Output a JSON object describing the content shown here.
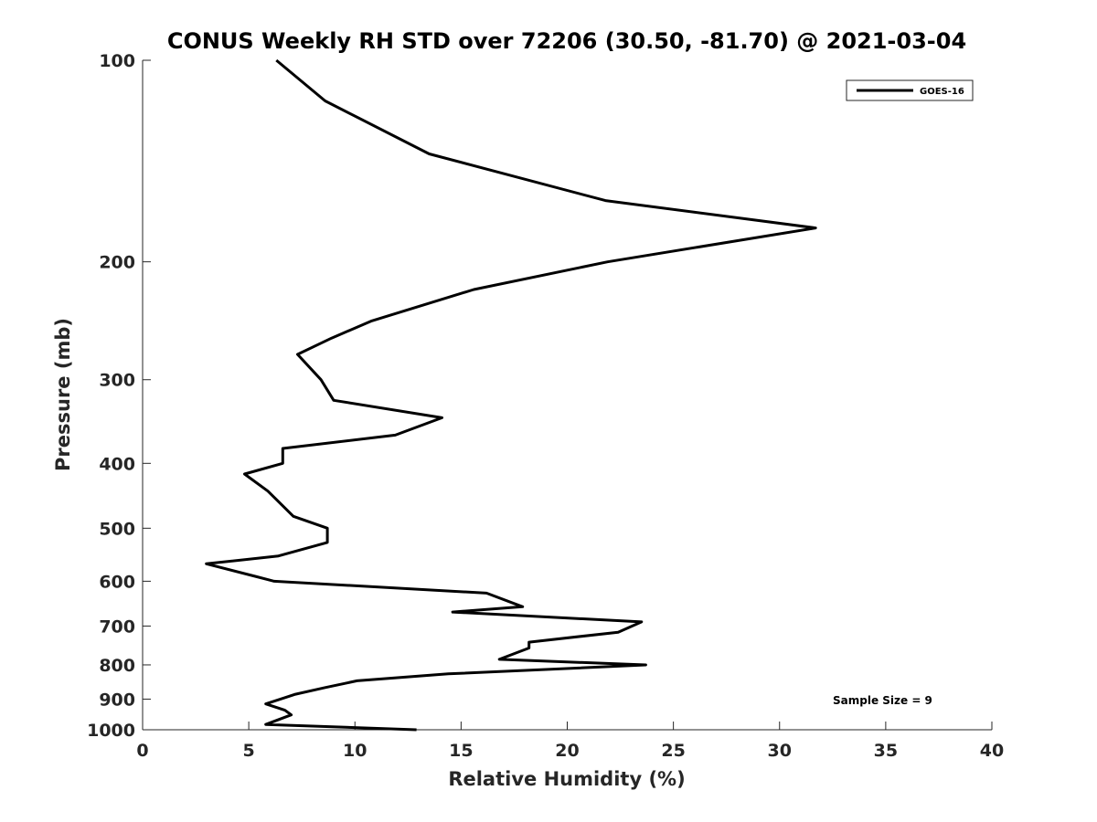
{
  "chart_data": {
    "type": "line",
    "title": "CONUS Weekly RH STD over 72206 (30.50, -81.70) @ 2021-03-04",
    "xlabel": "Relative Humidity (%)",
    "ylabel": "Pressure (mb)",
    "xlim": [
      0,
      40
    ],
    "ylim": [
      1000,
      100
    ],
    "y_scale": "log",
    "grid": false,
    "legend_position": "top-right",
    "x_ticks": [
      0,
      5,
      10,
      15,
      20,
      25,
      30,
      35,
      40
    ],
    "y_ticks": [
      100,
      200,
      300,
      400,
      500,
      600,
      700,
      800,
      900,
      1000
    ],
    "x_tick_labels": [
      "0",
      "5",
      "10",
      "15",
      "20",
      "25",
      "30",
      "35",
      "40"
    ],
    "y_tick_labels": [
      "100",
      "200",
      "300",
      "400",
      "500",
      "600",
      "700",
      "800",
      "900",
      "1000"
    ],
    "series": [
      {
        "name": "GOES-16",
        "color": "#000000",
        "x": [
          6.3,
          8.6,
          13.5,
          21.8,
          31.7,
          21.9,
          15.6,
          10.8,
          8.9,
          7.3,
          8.4,
          9.0,
          14.1,
          11.9,
          6.6,
          6.6,
          4.8,
          5.9,
          7.1,
          8.7,
          8.7,
          6.4,
          3.0,
          5.3,
          6.2,
          16.2,
          17.9,
          14.6,
          23.5,
          22.4,
          18.2,
          18.2,
          16.8,
          23.7,
          14.4,
          10.1,
          8.6,
          7.2,
          5.8,
          6.7,
          7.0,
          5.8,
          12.9
        ],
        "y": [
          100,
          115,
          138,
          162,
          178,
          200,
          220,
          245,
          260,
          275,
          300,
          322,
          342,
          363,
          380,
          400,
          415,
          440,
          480,
          500,
          525,
          550,
          565,
          590,
          600,
          625,
          655,
          667,
          690,
          715,
          740,
          755,
          785,
          800,
          825,
          845,
          865,
          885,
          915,
          935,
          950,
          982,
          1000
        ]
      }
    ],
    "annotation": "Sample Size = 9"
  }
}
